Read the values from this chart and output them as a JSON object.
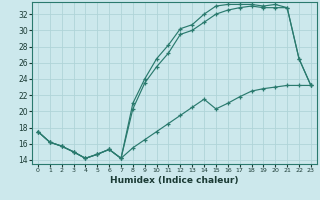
{
  "title": "",
  "xlabel": "Humidex (Indice chaleur)",
  "ylabel": "",
  "background_color": "#cce8ec",
  "grid_color": "#b0d4d8",
  "line_color": "#2a7a6e",
  "xlim": [
    -0.5,
    23.5
  ],
  "ylim": [
    13.5,
    33.5
  ],
  "yticks": [
    14,
    16,
    18,
    20,
    22,
    24,
    26,
    28,
    30,
    32
  ],
  "xticks": [
    0,
    1,
    2,
    3,
    4,
    5,
    6,
    7,
    8,
    9,
    10,
    11,
    12,
    13,
    14,
    15,
    16,
    17,
    18,
    19,
    20,
    21,
    22,
    23
  ],
  "line1_x": [
    0,
    1,
    2,
    3,
    4,
    5,
    6,
    7,
    8,
    9,
    10,
    11,
    12,
    13,
    14,
    15,
    16,
    17,
    18,
    19,
    20,
    21,
    22,
    23
  ],
  "line1_y": [
    17.5,
    16.2,
    15.7,
    15.0,
    14.2,
    14.7,
    15.3,
    14.2,
    21.0,
    24.0,
    26.5,
    28.2,
    30.2,
    30.7,
    32.0,
    33.0,
    33.2,
    33.2,
    33.2,
    33.0,
    33.2,
    32.8,
    26.5,
    23.2
  ],
  "line2_x": [
    0,
    1,
    2,
    3,
    4,
    5,
    6,
    7,
    8,
    9,
    10,
    11,
    12,
    13,
    14,
    15,
    16,
    17,
    18,
    19,
    20,
    21,
    22,
    23
  ],
  "line2_y": [
    17.5,
    16.2,
    15.7,
    15.0,
    14.2,
    14.7,
    15.3,
    14.2,
    20.3,
    23.5,
    25.5,
    27.2,
    29.5,
    30.0,
    31.0,
    32.0,
    32.5,
    32.8,
    33.0,
    32.8,
    32.8,
    32.8,
    26.5,
    23.2
  ],
  "line3_x": [
    0,
    1,
    2,
    3,
    4,
    5,
    6,
    7,
    8,
    9,
    10,
    11,
    12,
    13,
    14,
    15,
    16,
    17,
    18,
    19,
    20,
    21,
    22,
    23
  ],
  "line3_y": [
    17.5,
    16.2,
    15.7,
    15.0,
    14.2,
    14.7,
    15.3,
    14.2,
    15.5,
    16.5,
    17.5,
    18.5,
    19.5,
    20.5,
    21.5,
    20.3,
    21.0,
    21.8,
    22.5,
    22.8,
    23.0,
    23.2,
    23.2,
    23.2
  ]
}
